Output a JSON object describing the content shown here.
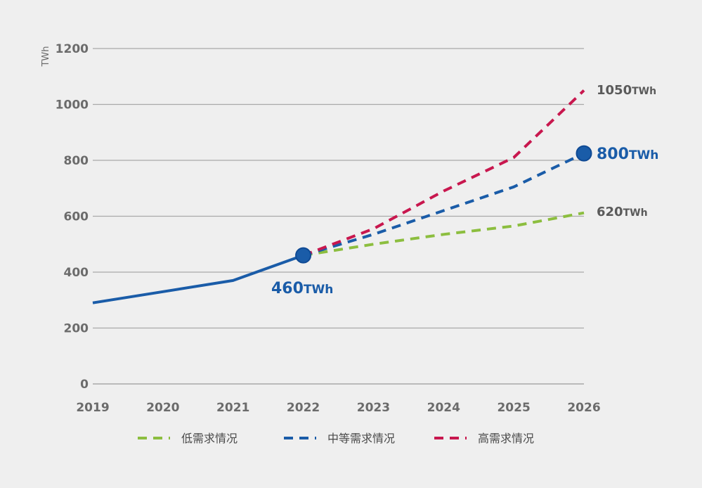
{
  "chart_data": {
    "type": "line",
    "ylabel": "TWh",
    "xlabel": "",
    "title": "",
    "x": [
      2019,
      2020,
      2021,
      2022,
      2023,
      2024,
      2025,
      2026
    ],
    "xlim": [
      2019,
      2026
    ],
    "ylim": [
      0,
      1200
    ],
    "yticks": [
      0,
      200,
      400,
      600,
      800,
      1000,
      1200
    ],
    "grid": "horizontal",
    "legend_position": "bottom",
    "series": [
      {
        "name": "",
        "style": "solid",
        "color": "#1a5ca8",
        "x": [
          2019,
          2020,
          2021,
          2022
        ],
        "y": [
          290,
          330,
          370,
          460
        ]
      },
      {
        "name": "低需求情况",
        "style": "dashed",
        "color": "#8cbe3f",
        "x": [
          2022,
          2023,
          2024,
          2025,
          2026
        ],
        "y": [
          460,
          500,
          535,
          565,
          612
        ]
      },
      {
        "name": "中等需求情况",
        "style": "dashed",
        "color": "#1a5ca8",
        "x": [
          2022,
          2023,
          2024,
          2025,
          2026
        ],
        "y": [
          460,
          535,
          620,
          705,
          825
        ]
      },
      {
        "name": "高需求情况",
        "style": "dashed",
        "color": "#c8174e",
        "x": [
          2022,
          2023,
          2024,
          2025,
          2026
        ],
        "y": [
          460,
          555,
          690,
          810,
          1050
        ]
      }
    ],
    "markers": [
      {
        "x": 2022,
        "y": 460,
        "color": "#1a5ca8"
      },
      {
        "x": 2026,
        "y": 825,
        "color": "#1a5ca8"
      }
    ],
    "annotations": [
      {
        "id": "label-460",
        "value": "460",
        "unit": "TWh",
        "color": "#1a5ca8"
      },
      {
        "id": "label-800",
        "value": "800",
        "unit": "TWh",
        "color": "#1a5ca8"
      },
      {
        "id": "label-1050",
        "value": "1050",
        "unit": "TWh",
        "color": "#5a5a5a"
      },
      {
        "id": "label-620",
        "value": "620",
        "unit": "TWh",
        "color": "#5a5a5a"
      }
    ]
  }
}
